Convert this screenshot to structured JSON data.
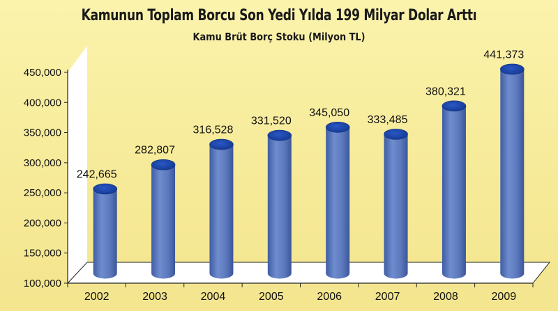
{
  "chart_data": {
    "type": "bar",
    "title": "Kamunun Toplam Borcu Son Yedi Yılda 199 Milyar Dolar Arttı",
    "subtitle": "Kamu Brüt Borç Stoku (Milyon TL)",
    "categories": [
      "2002",
      "2003",
      "2004",
      "2005",
      "2006",
      "2007",
      "2008",
      "2009"
    ],
    "values": [
      242665,
      282807,
      316528,
      331520,
      345050,
      333485,
      380321,
      441373
    ],
    "value_labels": [
      "242,665",
      "282,807",
      "316,528",
      "331,520",
      "345,050",
      "333,485",
      "380,321",
      "441,373"
    ],
    "ylim": [
      100000,
      450000
    ],
    "yticks": [
      100000,
      150000,
      200000,
      250000,
      300000,
      350000,
      400000,
      450000
    ],
    "ytick_labels": [
      "100,000",
      "150,000",
      "200,000",
      "250,000",
      "300,000",
      "350,000",
      "400,000",
      "450,000"
    ],
    "grid": false,
    "legend": "none",
    "style": "3d-cylinder",
    "colors": {
      "bar": "#5f7bbf",
      "bar_top": "#1f47a8",
      "background": "#f8ee9f",
      "wall": "#ffffff",
      "axis": "#222222"
    }
  }
}
